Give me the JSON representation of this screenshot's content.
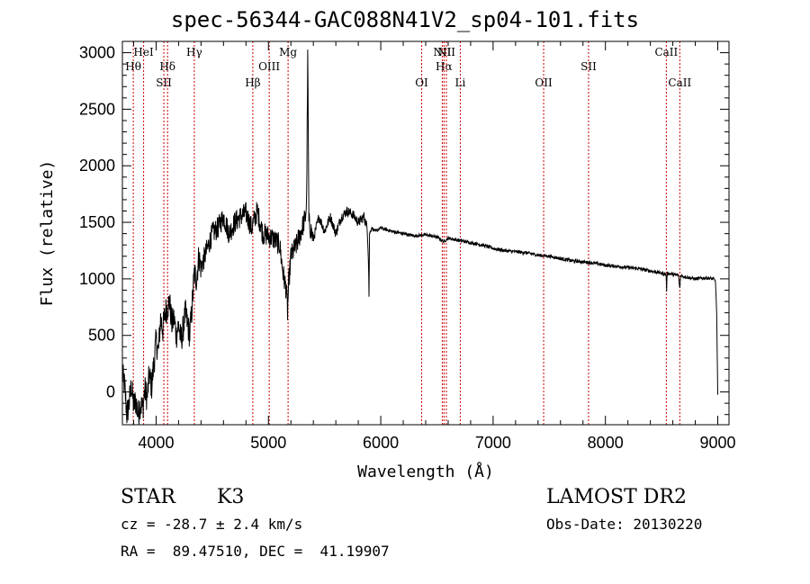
{
  "chart_data": {
    "type": "line",
    "title": "spec-56344-GAC088N41V2_sp04-101.fits",
    "xlabel": "Wavelength (Å)",
    "ylabel": "Flux (relative)",
    "xlim": [
      3700,
      9100
    ],
    "ylim": [
      -290,
      3100
    ],
    "xticks": [
      4000,
      5000,
      6000,
      7000,
      8000,
      9000
    ],
    "yticks": [
      0,
      500,
      1000,
      1500,
      2000,
      2500,
      3000
    ],
    "grid": false,
    "line_color": "#000000",
    "marker_color": "#cc0000",
    "spectrum": {
      "x": [
        3700,
        3720,
        3740,
        3760,
        3780,
        3800,
        3820,
        3840,
        3860,
        3880,
        3900,
        3920,
        3940,
        3960,
        3980,
        4000,
        4020,
        4040,
        4060,
        4080,
        4100,
        4120,
        4140,
        4160,
        4180,
        4200,
        4220,
        4240,
        4260,
        4280,
        4300,
        4320,
        4340,
        4360,
        4380,
        4400,
        4450,
        4500,
        4550,
        4600,
        4650,
        4700,
        4750,
        4800,
        4850,
        4900,
        4950,
        5000,
        5050,
        5100,
        5130,
        5160,
        5170,
        5180,
        5200,
        5250,
        5300,
        5330,
        5340,
        5350,
        5360,
        5400,
        5450,
        5500,
        5550,
        5600,
        5650,
        5700,
        5750,
        5800,
        5850,
        5880,
        5890,
        5895,
        5900,
        5920,
        5950,
        6000,
        6100,
        6200,
        6300,
        6400,
        6500,
        6560,
        6600,
        6700,
        6800,
        6900,
        7000,
        7100,
        7200,
        7300,
        7400,
        7500,
        7600,
        7700,
        7800,
        7900,
        8000,
        8100,
        8200,
        8300,
        8400,
        8500,
        8540,
        8545,
        8550,
        8600,
        8650,
        8662,
        8670,
        8700,
        8800,
        8900,
        8960,
        8980,
        8990,
        9000
      ],
      "y": [
        150,
        50,
        -200,
        -100,
        60,
        -120,
        -80,
        -200,
        -100,
        -150,
        20,
        -50,
        150,
        50,
        250,
        450,
        350,
        650,
        550,
        700,
        750,
        800,
        600,
        650,
        500,
        600,
        450,
        550,
        700,
        600,
        500,
        750,
        1050,
        1000,
        1200,
        1100,
        1250,
        1400,
        1450,
        1550,
        1400,
        1500,
        1550,
        1580,
        1450,
        1600,
        1400,
        1380,
        1350,
        1300,
        1050,
        900,
        700,
        950,
        1200,
        1300,
        1450,
        1550,
        1700,
        2950,
        1500,
        1350,
        1550,
        1420,
        1550,
        1400,
        1550,
        1600,
        1570,
        1500,
        1550,
        1450,
        1200,
        850,
        1400,
        1450,
        1420,
        1450,
        1420,
        1400,
        1380,
        1390,
        1370,
        1330,
        1360,
        1340,
        1320,
        1300,
        1270,
        1250,
        1240,
        1230,
        1210,
        1200,
        1180,
        1160,
        1150,
        1140,
        1120,
        1110,
        1100,
        1090,
        1070,
        1050,
        1040,
        900,
        1050,
        1040,
        1030,
        910,
        1030,
        1020,
        1000,
        1010,
        1000,
        980,
        700,
        -30
      ]
    },
    "lines": [
      {
        "label": "HeI",
        "x": 3889,
        "row": 0
      },
      {
        "label": "Hθ",
        "x": 3797,
        "row": 1
      },
      {
        "label": "SII",
        "x": 4069,
        "row": 2
      },
      {
        "label": "Hδ",
        "x": 4102,
        "row": 1
      },
      {
        "label": "Hγ",
        "x": 4340,
        "row": 0
      },
      {
        "label": "Hβ",
        "x": 4861,
        "row": 2
      },
      {
        "label": "OIII",
        "x": 5007,
        "row": 1
      },
      {
        "label": "Mg",
        "x": 5175,
        "row": 0
      },
      {
        "label": "OI",
        "x": 6364,
        "row": 2
      },
      {
        "label": "NII",
        "x": 6548,
        "row": 0
      },
      {
        "label": "Hα",
        "x": 6563,
        "row": 1
      },
      {
        "label": "NII",
        "x": 6584,
        "row": 0
      },
      {
        "label": "Li",
        "x": 6708,
        "row": 2
      },
      {
        "label": "OII",
        "x": 7450,
        "row": 2
      },
      {
        "label": "SII",
        "x": 7850,
        "row": 1
      },
      {
        "label": "CaII",
        "x": 8542,
        "row": 0
      },
      {
        "label": "CaII",
        "x": 8662,
        "row": 2
      }
    ]
  },
  "info": {
    "object_class": "STAR",
    "subclass": "K3",
    "survey": "LAMOST DR2",
    "cz": "cz = -28.7 ± 2.4 km/s",
    "obs_date": "Obs-Date: 20130220",
    "coords": "RA =  89.47510, DEC =  41.19907"
  }
}
